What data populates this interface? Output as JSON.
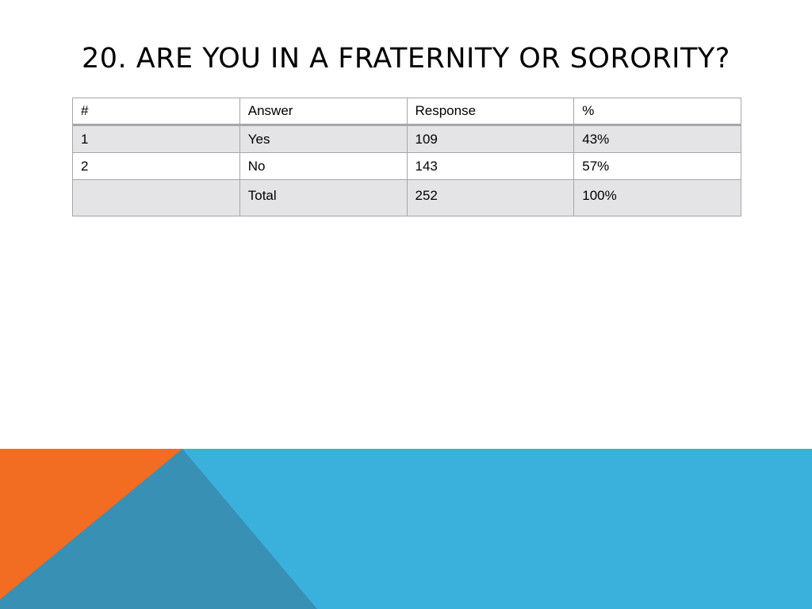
{
  "title": "20.  ARE YOU IN A FRATERNITY OR SORORITY?",
  "table": {
    "headers": [
      "#",
      "Answer",
      "Response",
      "%"
    ],
    "rows": [
      [
        "1",
        "Yes",
        "109",
        "43%"
      ],
      [
        "2",
        "No",
        "143",
        "57%"
      ],
      [
        "",
        "Total",
        "252",
        "100%"
      ]
    ]
  },
  "colors": {
    "orange": "#f26c21",
    "blue": "#3ab0dd",
    "teal": "#3890b4"
  }
}
